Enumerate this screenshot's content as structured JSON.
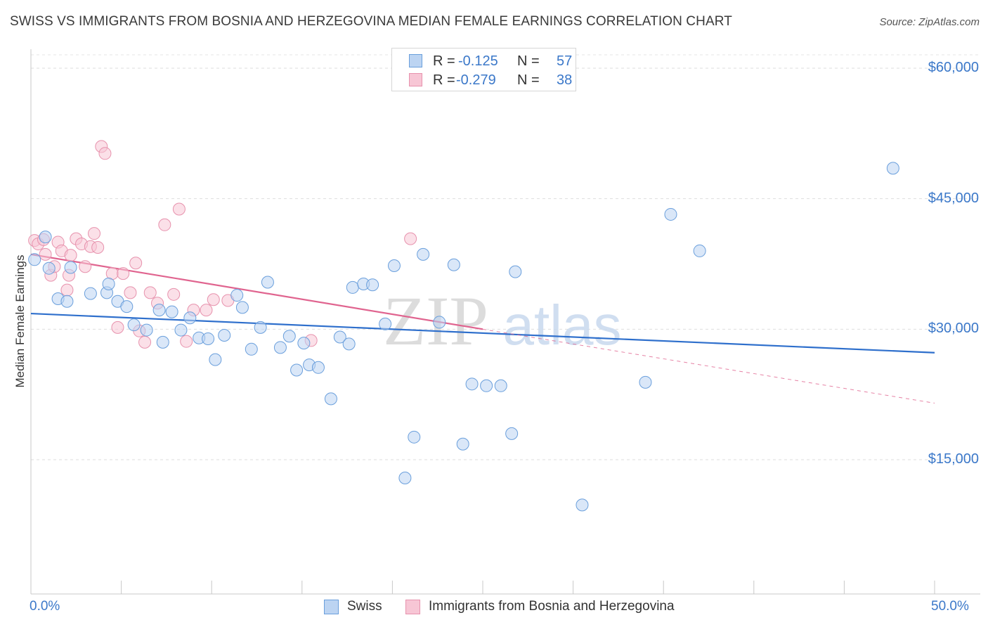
{
  "title": "SWISS VS IMMIGRANTS FROM BOSNIA AND HERZEGOVINA MEDIAN FEMALE EARNINGS CORRELATION CHART",
  "source": "Source: ZipAtlas.com",
  "watermark": {
    "zip": "ZIP",
    "atlas": "atlas"
  },
  "legend": {
    "rows": [
      {
        "r_label": "R =",
        "r_value": "-0.125",
        "n_label": "N =",
        "n_value": "57"
      },
      {
        "r_label": "R =",
        "r_value": "-0.279",
        "n_label": "N =",
        "n_value": "38"
      }
    ]
  },
  "chart_data": {
    "type": "scatter",
    "title": "SWISS VS IMMIGRANTS FROM BOSNIA AND HERZEGOVINA MEDIAN FEMALE EARNINGS CORRELATION CHART",
    "xlabel": "",
    "ylabel": "Median Female Earnings",
    "xlim": [
      0,
      50
    ],
    "ylim": [
      0,
      62000
    ],
    "x_tick_labels": [
      "0.0%",
      "50.0%"
    ],
    "y_ticks": [
      15000,
      30000,
      45000,
      60000
    ],
    "y_tick_labels": [
      "$15,000",
      "$30,000",
      "$45,000",
      "$60,000"
    ],
    "grid": true,
    "legend_position": "top-center",
    "colors": {
      "swiss_fill": "#bcd4f2",
      "swiss_edge": "#6a9fdc",
      "swiss_line": "#2e6fcc",
      "bosnia_fill": "#f7c6d5",
      "bosnia_edge": "#e792ad",
      "bosnia_line": "#e0648f",
      "axis_text": "#3b78c9"
    },
    "series": [
      {
        "name": "Swiss",
        "r": -0.125,
        "n": 57,
        "trend": {
          "x": [
            0,
            50
          ],
          "y": [
            31800,
            27300
          ]
        },
        "points": [
          [
            0.2,
            38000
          ],
          [
            0.8,
            40600
          ],
          [
            1.0,
            37000
          ],
          [
            1.5,
            33500
          ],
          [
            2.0,
            33200
          ],
          [
            2.2,
            37100
          ],
          [
            3.3,
            34100
          ],
          [
            4.2,
            34200
          ],
          [
            4.3,
            35200
          ],
          [
            4.8,
            33200
          ],
          [
            5.3,
            32600
          ],
          [
            5.7,
            30500
          ],
          [
            6.4,
            29900
          ],
          [
            7.1,
            32200
          ],
          [
            7.3,
            28500
          ],
          [
            7.8,
            32000
          ],
          [
            8.3,
            29900
          ],
          [
            8.8,
            31300
          ],
          [
            9.3,
            29000
          ],
          [
            9.8,
            28900
          ],
          [
            10.2,
            26500
          ],
          [
            10.7,
            29300
          ],
          [
            11.4,
            33900
          ],
          [
            11.7,
            32500
          ],
          [
            12.2,
            27700
          ],
          [
            12.7,
            30200
          ],
          [
            13.1,
            35400
          ],
          [
            13.8,
            27900
          ],
          [
            14.3,
            29200
          ],
          [
            14.7,
            25300
          ],
          [
            15.1,
            28400
          ],
          [
            15.4,
            25900
          ],
          [
            15.9,
            25600
          ],
          [
            16.6,
            22000
          ],
          [
            17.1,
            29100
          ],
          [
            17.6,
            28300
          ],
          [
            17.8,
            34800
          ],
          [
            18.4,
            35200
          ],
          [
            18.9,
            35100
          ],
          [
            19.6,
            30600
          ],
          [
            20.1,
            37300
          ],
          [
            20.7,
            12900
          ],
          [
            21.2,
            17600
          ],
          [
            21.7,
            38600
          ],
          [
            22.6,
            30800
          ],
          [
            23.4,
            37400
          ],
          [
            23.9,
            16800
          ],
          [
            24.4,
            23700
          ],
          [
            25.2,
            23500
          ],
          [
            26.0,
            23500
          ],
          [
            26.6,
            18000
          ],
          [
            26.8,
            36600
          ],
          [
            30.5,
            9800
          ],
          [
            34.0,
            23900
          ],
          [
            35.4,
            43200
          ],
          [
            37.0,
            39000
          ],
          [
            47.7,
            48500
          ]
        ]
      },
      {
        "name": "Immigrants from Bosnia and Herzegovina",
        "r": -0.279,
        "n": 38,
        "trend": {
          "x": [
            0,
            25
          ],
          "y": [
            38600,
            30000
          ]
        },
        "trend_extension": {
          "x": [
            25,
            50
          ],
          "y": [
            30000,
            21500
          ]
        },
        "points": [
          [
            0.2,
            40200
          ],
          [
            0.4,
            39800
          ],
          [
            0.7,
            40300
          ],
          [
            0.8,
            38600
          ],
          [
            1.1,
            36200
          ],
          [
            1.3,
            37200
          ],
          [
            1.5,
            40000
          ],
          [
            1.7,
            39000
          ],
          [
            2.0,
            34500
          ],
          [
            2.1,
            36200
          ],
          [
            2.2,
            38500
          ],
          [
            2.5,
            40400
          ],
          [
            2.8,
            39800
          ],
          [
            3.0,
            37200
          ],
          [
            3.3,
            39500
          ],
          [
            3.5,
            41000
          ],
          [
            3.7,
            39400
          ],
          [
            3.9,
            51000
          ],
          [
            4.1,
            50200
          ],
          [
            4.5,
            36400
          ],
          [
            4.8,
            30200
          ],
          [
            5.1,
            36400
          ],
          [
            5.5,
            34200
          ],
          [
            5.8,
            37600
          ],
          [
            6.0,
            29800
          ],
          [
            6.3,
            28500
          ],
          [
            6.6,
            34200
          ],
          [
            7.0,
            33000
          ],
          [
            7.4,
            42000
          ],
          [
            7.9,
            34000
          ],
          [
            8.2,
            43800
          ],
          [
            8.6,
            28600
          ],
          [
            9.0,
            32200
          ],
          [
            9.7,
            32200
          ],
          [
            10.1,
            33400
          ],
          [
            10.9,
            33300
          ],
          [
            15.5,
            28700
          ],
          [
            21.0,
            40400
          ]
        ]
      }
    ]
  },
  "bottom_legend": [
    "Swiss",
    "Immigrants from Bosnia and Herzegovina"
  ]
}
